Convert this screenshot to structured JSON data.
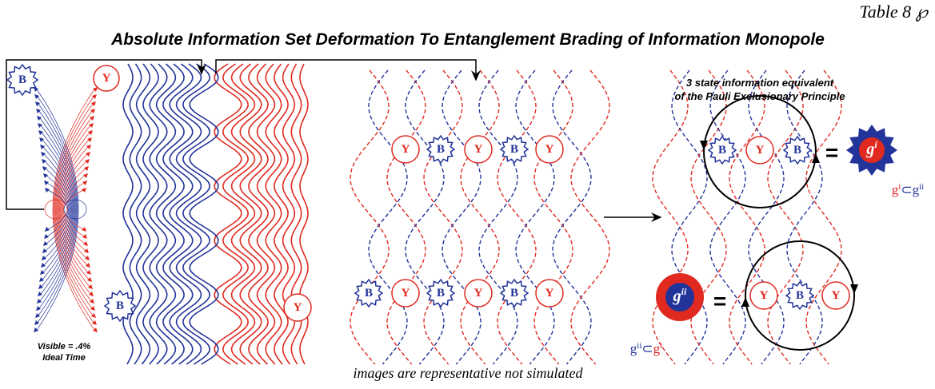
{
  "header": {
    "table_label": "Table 8 ℘",
    "title": "Absolute Information Set Deformation To Entanglement Brading of Information Monopole"
  },
  "panel1": {
    "labels": [
      "B",
      "Y"
    ],
    "caption": [
      "Visible = .4%",
      "Ideal Time"
    ]
  },
  "panel2": {
    "labels": [
      "B",
      "Y"
    ]
  },
  "panel3": {
    "row1": [
      "Y",
      "B",
      "Y",
      "B",
      "Y"
    ],
    "row2": [
      "B",
      "Y",
      "B",
      "Y",
      "B",
      "Y"
    ]
  },
  "panel4": {
    "heading": [
      "3 state information equivalent",
      "of the Pauli Exclusionary Principle"
    ],
    "row1": [
      "B",
      "Y",
      "B"
    ],
    "eq1": "=",
    "g1": {
      "base": "g",
      "sup": "i"
    },
    "subset1": {
      "a": "g",
      "a_sup": "i",
      "op": "⊂",
      "b": "g",
      "b_sup": "ii"
    },
    "row2": [
      "Y",
      "B",
      "Y"
    ],
    "eq2": "=",
    "g2": {
      "base": "g",
      "sup": "ii"
    },
    "subset2": {
      "a": "g",
      "a_sup": "ii",
      "op": "⊂",
      "b": "g",
      "b_sup": "i"
    }
  },
  "footer": "images are representative not simulated"
}
